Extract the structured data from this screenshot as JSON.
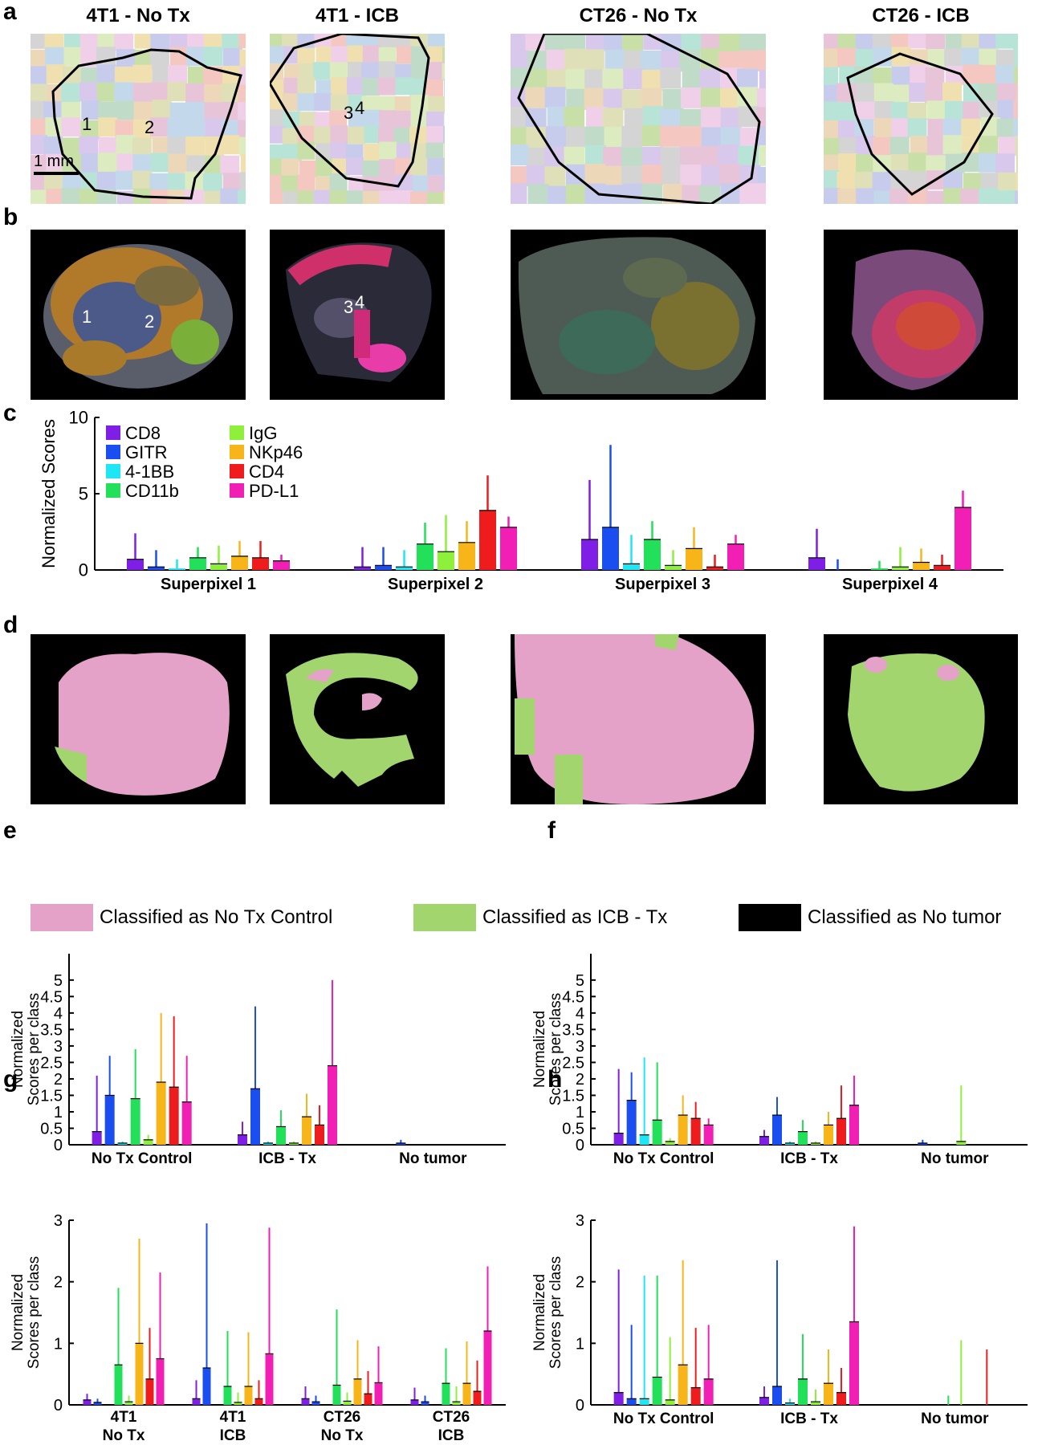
{
  "panel_letters": {
    "a": "a",
    "b": "b",
    "c": "c",
    "d": "d",
    "e": "e",
    "f": "f",
    "g": "g",
    "h": "h"
  },
  "columns": [
    "4T1 - No Tx",
    "4T1 - ICB",
    "CT26 - No Tx",
    "CT26 - ICB"
  ],
  "scale_bar": "1 mm",
  "superpixel_markers": {
    "panel_a": [
      "1",
      "2",
      "3",
      "4"
    ],
    "panel_b": [
      "1",
      "2",
      "3",
      "4"
    ]
  },
  "marker_colors": {
    "CD8": "#7f1fe6",
    "GITR": "#1a4ef0",
    "4-1BB": "#1ee6f5",
    "CD11b": "#22e05a",
    "IgG": "#8ef03a",
    "NKp46": "#f8b51a",
    "CD4": "#ee1c1c",
    "PD-L1": "#f21fb4"
  },
  "class_legend": [
    {
      "label": "Classified as No Tx  Control",
      "color": "#e5a2c8"
    },
    {
      "label": "Classified as ICB - Tx",
      "color": "#a2d56e"
    },
    {
      "label": "Classified as No tumor",
      "color": "#000000"
    }
  ],
  "chart_data": [
    {
      "id": "c",
      "type": "bar",
      "ylabel": "Normalized Scores",
      "ylim": [
        0,
        10
      ],
      "yticks": [
        0,
        5,
        10
      ],
      "categories": [
        "Superpixel 1",
        "Superpixel 2",
        "Superpixel 3",
        "Superpixel 4"
      ],
      "legend": [
        "CD8",
        "GITR",
        "4-1BB",
        "CD11b",
        "IgG",
        "NKp46",
        "CD4",
        "PD-L1"
      ],
      "series": [
        {
          "name": "CD8",
          "values": [
            0.7,
            0.2,
            2.0,
            0.8
          ],
          "err": [
            2.4,
            1.5,
            5.9,
            2.7
          ]
        },
        {
          "name": "GITR",
          "values": [
            0.2,
            0.3,
            2.8,
            0.0
          ],
          "err": [
            1.3,
            1.5,
            8.2,
            0.7
          ]
        },
        {
          "name": "4-1BB",
          "values": [
            0.1,
            0.2,
            0.4,
            0.0
          ],
          "err": [
            0.7,
            1.3,
            2.3,
            0.0
          ]
        },
        {
          "name": "CD11b",
          "values": [
            0.8,
            1.7,
            2.0,
            0.1
          ],
          "err": [
            1.5,
            3.1,
            3.2,
            0.6
          ]
        },
        {
          "name": "IgG",
          "values": [
            0.4,
            1.2,
            0.3,
            0.2
          ],
          "err": [
            1.6,
            3.6,
            1.3,
            1.5
          ]
        },
        {
          "name": "NKp46",
          "values": [
            0.9,
            1.8,
            1.4,
            0.5
          ],
          "err": [
            1.9,
            3.2,
            2.8,
            1.4
          ]
        },
        {
          "name": "CD4",
          "values": [
            0.8,
            3.9,
            0.2,
            0.3
          ],
          "err": [
            1.9,
            6.2,
            1.0,
            1.0
          ]
        },
        {
          "name": "PD-L1",
          "values": [
            0.6,
            2.8,
            1.7,
            4.1
          ],
          "err": [
            1.0,
            3.5,
            2.3,
            5.2
          ]
        }
      ]
    },
    {
      "id": "e",
      "type": "bar",
      "ylabel": "Normalized Scores per class",
      "ylim": [
        0,
        5.8
      ],
      "yticks": [
        0,
        0.5,
        1,
        1.5,
        2,
        2.5,
        3,
        3.5,
        4,
        4.5,
        5
      ],
      "categories": [
        "No Tx Control",
        "ICB - Tx",
        "No tumor"
      ],
      "series": [
        {
          "name": "CD8",
          "values": [
            0.4,
            0.3,
            0.0
          ],
          "err": [
            2.1,
            0.7,
            0.0
          ]
        },
        {
          "name": "GITR",
          "values": [
            1.5,
            1.7,
            0.05
          ],
          "err": [
            2.7,
            4.2,
            0.15
          ]
        },
        {
          "name": "4-1BB",
          "values": [
            0.05,
            0.05,
            0.0
          ],
          "err": [
            0.1,
            0.1,
            0.0
          ]
        },
        {
          "name": "CD11b",
          "values": [
            1.4,
            0.55,
            0.0
          ],
          "err": [
            2.9,
            1.05,
            0.0
          ]
        },
        {
          "name": "IgG",
          "values": [
            0.15,
            0.05,
            0.0
          ],
          "err": [
            0.3,
            0.1,
            0.0
          ]
        },
        {
          "name": "NKp46",
          "values": [
            1.9,
            0.85,
            0.0
          ],
          "err": [
            4.0,
            1.55,
            0.0
          ]
        },
        {
          "name": "CD4",
          "values": [
            1.75,
            0.6,
            0.0
          ],
          "err": [
            3.9,
            1.2,
            0.0
          ]
        },
        {
          "name": "PD-L1",
          "values": [
            1.3,
            2.4,
            0.0
          ],
          "err": [
            2.7,
            5.0,
            0.0
          ]
        }
      ]
    },
    {
      "id": "f",
      "type": "bar",
      "ylabel": "Normalized Scores per class",
      "ylim": [
        0,
        5.8
      ],
      "yticks": [
        0,
        0.5,
        1,
        1.5,
        2,
        2.5,
        3,
        3.5,
        4,
        4.5,
        5
      ],
      "categories": [
        "No Tx Control",
        "ICB - Tx",
        "No tumor"
      ],
      "series": [
        {
          "name": "CD8",
          "values": [
            0.35,
            0.25,
            0.0
          ],
          "err": [
            2.3,
            0.45,
            0.0
          ]
        },
        {
          "name": "GITR",
          "values": [
            1.35,
            0.9,
            0.05
          ],
          "err": [
            2.2,
            1.45,
            0.15
          ]
        },
        {
          "name": "4-1BB",
          "values": [
            0.3,
            0.05,
            0.0
          ],
          "err": [
            2.65,
            0.1,
            0.0
          ]
        },
        {
          "name": "CD11b",
          "values": [
            0.75,
            0.4,
            0.0
          ],
          "err": [
            2.5,
            0.75,
            0.0
          ]
        },
        {
          "name": "IgG",
          "values": [
            0.1,
            0.05,
            0.1
          ],
          "err": [
            0.2,
            0.1,
            1.8
          ]
        },
        {
          "name": "NKp46",
          "values": [
            0.9,
            0.6,
            0.0
          ],
          "err": [
            1.5,
            1.0,
            0.0
          ]
        },
        {
          "name": "CD4",
          "values": [
            0.8,
            0.8,
            0.0
          ],
          "err": [
            1.3,
            1.8,
            0.0
          ]
        },
        {
          "name": "PD-L1",
          "values": [
            0.6,
            1.2,
            0.0
          ],
          "err": [
            0.8,
            2.1,
            0.0
          ]
        }
      ]
    },
    {
      "id": "g",
      "type": "bar",
      "ylabel": "Normalized Scores per class",
      "ylim": [
        0,
        3
      ],
      "yticks": [
        0,
        1,
        2,
        3
      ],
      "categories": [
        "4T1 No Tx",
        "4T1 ICB",
        "CT26 No Tx",
        "CT26 ICB"
      ],
      "category_lines": [
        [
          "4T1",
          "No Tx"
        ],
        [
          "4T1",
          "ICB"
        ],
        [
          "CT26",
          "No Tx"
        ],
        [
          "CT26",
          "ICB"
        ]
      ],
      "series": [
        {
          "name": "CD8",
          "values": [
            0.08,
            0.1,
            0.1,
            0.08
          ],
          "err": [
            0.18,
            0.4,
            0.3,
            0.28
          ]
        },
        {
          "name": "GITR",
          "values": [
            0.04,
            0.6,
            0.05,
            0.05
          ],
          "err": [
            0.1,
            2.95,
            0.15,
            0.15
          ]
        },
        {
          "name": "4-1BB",
          "values": [
            0.0,
            0.0,
            0.0,
            0.0
          ],
          "err": [
            0.0,
            0.0,
            0.0,
            0.0
          ]
        },
        {
          "name": "CD11b",
          "values": [
            0.65,
            0.3,
            0.32,
            0.35
          ],
          "err": [
            1.9,
            1.2,
            1.55,
            0.92
          ]
        },
        {
          "name": "IgG",
          "values": [
            0.05,
            0.04,
            0.06,
            0.05
          ],
          "err": [
            0.15,
            0.2,
            0.2,
            0.3
          ]
        },
        {
          "name": "NKp46",
          "values": [
            1.0,
            0.3,
            0.42,
            0.35
          ],
          "err": [
            2.7,
            1.18,
            1.05,
            1.03
          ]
        },
        {
          "name": "CD4",
          "values": [
            0.42,
            0.1,
            0.18,
            0.22
          ],
          "err": [
            1.25,
            0.4,
            0.55,
            0.72
          ]
        },
        {
          "name": "PD-L1",
          "values": [
            0.75,
            0.83,
            0.36,
            1.2
          ],
          "err": [
            2.15,
            2.88,
            0.95,
            2.25
          ]
        }
      ]
    },
    {
      "id": "h",
      "type": "bar",
      "ylabel": "Normalized Scores per class",
      "ylim": [
        0,
        3
      ],
      "yticks": [
        0,
        1,
        2,
        3
      ],
      "categories": [
        "No Tx Control",
        "ICB - Tx",
        "No tumor"
      ],
      "series": [
        {
          "name": "CD8",
          "values": [
            0.2,
            0.12,
            0.0
          ],
          "err": [
            2.2,
            0.3,
            0.0
          ]
        },
        {
          "name": "GITR",
          "values": [
            0.1,
            0.3,
            0.0
          ],
          "err": [
            1.3,
            2.35,
            0.0
          ]
        },
        {
          "name": "4-1BB",
          "values": [
            0.1,
            0.03,
            0.0
          ],
          "err": [
            2.1,
            0.1,
            0.0
          ]
        },
        {
          "name": "CD11b",
          "values": [
            0.45,
            0.42,
            0.0
          ],
          "err": [
            2.1,
            1.15,
            0.15
          ]
        },
        {
          "name": "IgG",
          "values": [
            0.08,
            0.05,
            0.0
          ],
          "err": [
            1.1,
            0.25,
            1.05
          ]
        },
        {
          "name": "NKp46",
          "values": [
            0.65,
            0.35,
            0.0
          ],
          "err": [
            2.35,
            0.9,
            0.0
          ]
        },
        {
          "name": "CD4",
          "values": [
            0.28,
            0.2,
            0.0
          ],
          "err": [
            1.25,
            0.6,
            0.9
          ]
        },
        {
          "name": "PD-L1",
          "values": [
            0.42,
            1.35,
            0.0
          ],
          "err": [
            1.3,
            2.9,
            0.0
          ]
        }
      ]
    }
  ]
}
